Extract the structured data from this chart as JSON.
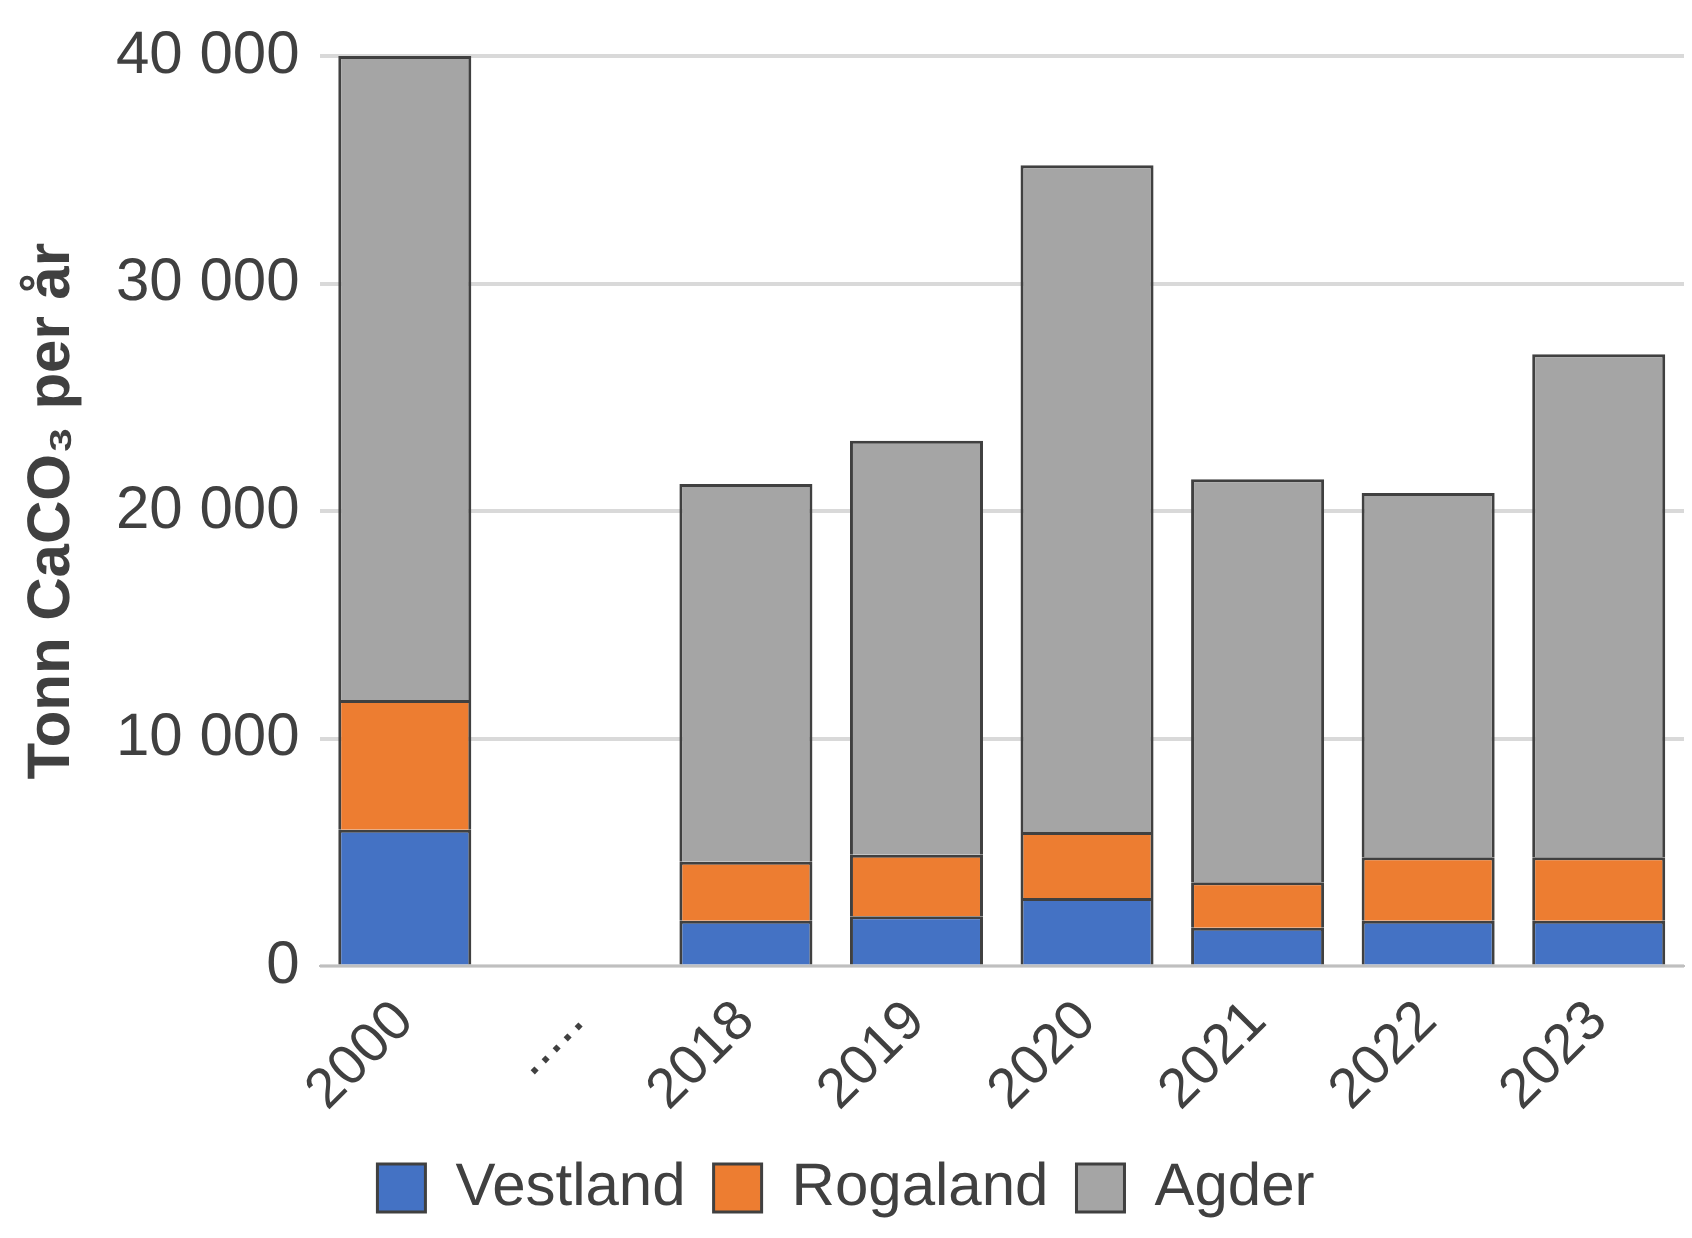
{
  "chart_data": {
    "type": "bar",
    "stacked": true,
    "ylabel": "Tonn CaCO₃ per år",
    "categories": [
      "2000",
      ".....",
      "2018",
      "2019",
      "2020",
      "2021",
      "2022",
      "2023"
    ],
    "series": [
      {
        "name": "Vestland",
        "color": "#4472c4",
        "values": [
          6000,
          null,
          2000,
          2200,
          3000,
          1700,
          2000,
          2000
        ]
      },
      {
        "name": "Rogaland",
        "color": "#ed7d31",
        "values": [
          5700,
          null,
          2600,
          2700,
          2900,
          2000,
          2800,
          2800
        ]
      },
      {
        "name": "Agder",
        "color": "#a5a5a5",
        "values": [
          28300,
          null,
          16600,
          18200,
          29300,
          17700,
          16000,
          22100
        ]
      }
    ],
    "ylim": [
      0,
      40000
    ],
    "yticks": [
      {
        "value": 0,
        "label": "0"
      },
      {
        "value": 10000,
        "label": "10 000"
      },
      {
        "value": 20000,
        "label": "20 000"
      },
      {
        "value": 30000,
        "label": "30 000"
      },
      {
        "value": 40000,
        "label": "40 000"
      }
    ],
    "grid": "y",
    "legend": "bottom"
  }
}
